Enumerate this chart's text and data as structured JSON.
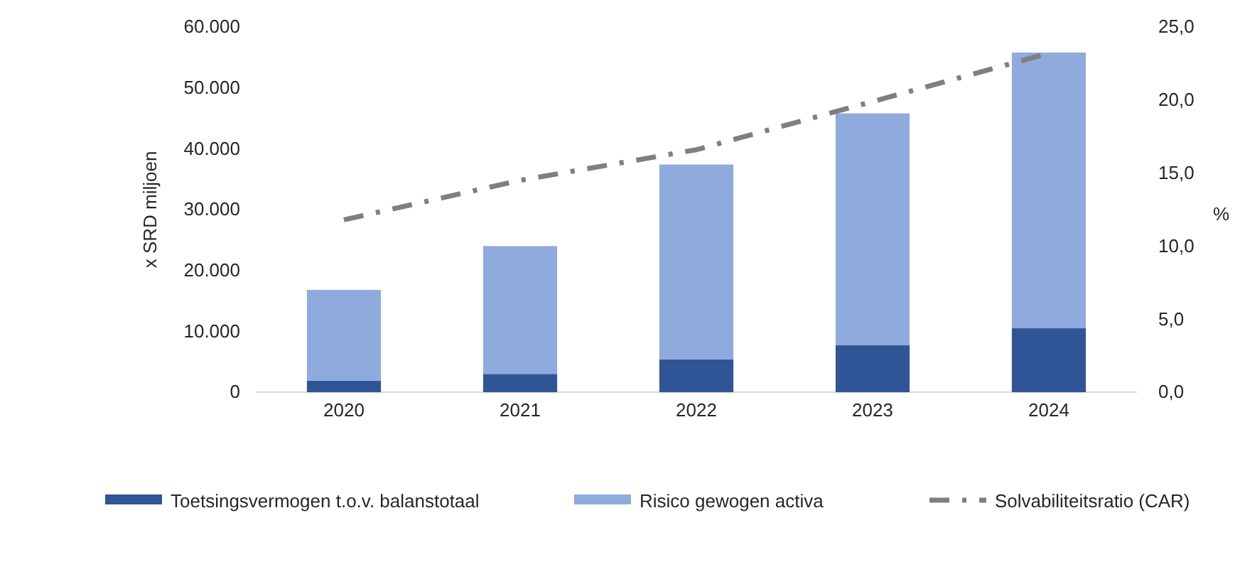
{
  "chart_data": {
    "type": "bar",
    "stacked": true,
    "ylabel": "x SRD miljoen",
    "y2label": "%",
    "categories": [
      "2020",
      "2021",
      "2022",
      "2023",
      "2024"
    ],
    "series": [
      {
        "name": "Toetsingsvermogen t.o.v. balanstotaal",
        "color": "#2f5597",
        "values": [
          1900,
          3000,
          5400,
          7700,
          10500
        ]
      },
      {
        "name": "Risico gewogen activa",
        "color": "#8faadc",
        "values": [
          14900,
          21000,
          32000,
          38100,
          45300
        ]
      },
      {
        "name": "Solvabiliteitsratio (CAR)",
        "type": "line",
        "axis": "y2",
        "color": "#7f7f7f",
        "line_style": "dashed",
        "marker": "none",
        "values": [
          11.8,
          14.5,
          16.6,
          19.9,
          23.2
        ]
      }
    ],
    "ylim": [
      0,
      60000
    ],
    "yticks": [
      {
        "value": 0,
        "label": "0"
      },
      {
        "value": 10000,
        "label": "10.000"
      },
      {
        "value": 20000,
        "label": "20.000"
      },
      {
        "value": 30000,
        "label": "30.000"
      },
      {
        "value": 40000,
        "label": "40.000"
      },
      {
        "value": 50000,
        "label": "50.000"
      },
      {
        "value": 60000,
        "label": "60.000"
      }
    ],
    "y2lim": [
      0,
      25
    ],
    "y2ticks": [
      {
        "value": 0,
        "label": "0,0"
      },
      {
        "value": 5,
        "label": "5,0"
      },
      {
        "value": 10,
        "label": "10,0"
      },
      {
        "value": 15,
        "label": "15,0"
      },
      {
        "value": 20,
        "label": "20,0"
      },
      {
        "value": 25,
        "label": "25,0"
      }
    ],
    "grid": false,
    "legend": "bottom"
  }
}
